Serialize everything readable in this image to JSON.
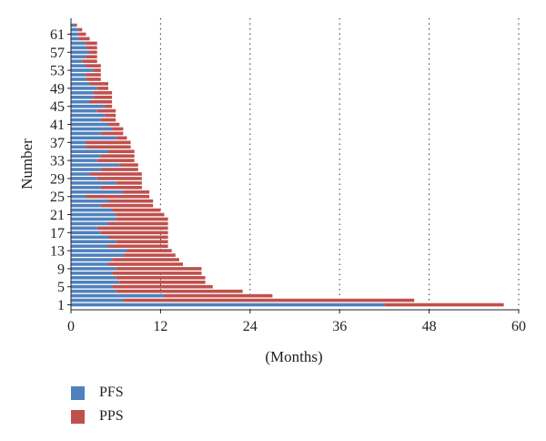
{
  "chart_data": {
    "type": "bar",
    "orientation": "horizontal",
    "stacked": true,
    "xlabel": "(Months)",
    "ylabel": "Number",
    "xlim": [
      0,
      60
    ],
    "xticks": [
      0,
      12,
      24,
      36,
      48,
      60
    ],
    "ylim": [
      0,
      64
    ],
    "yticks": [
      1,
      5,
      9,
      13,
      17,
      21,
      25,
      29,
      33,
      37,
      41,
      45,
      49,
      53,
      57,
      61
    ],
    "grid": "vertical-dotted",
    "legend_position": "bottom-left",
    "colors": {
      "PFS": "#4f81bd",
      "PPS": "#c0504d"
    },
    "series": [
      {
        "name": "PFS",
        "values": [
          42.0,
          7.0,
          12.5,
          6.0,
          5.5,
          6.5,
          6.0,
          5.5,
          6.0,
          5.0,
          5.5,
          7.0,
          7.5,
          5.0,
          6.0,
          5.0,
          4.0,
          3.5,
          5.0,
          6.0,
          6.0,
          5.5,
          4.0,
          5.0,
          2.0,
          7.0,
          4.0,
          6.0,
          3.5,
          2.5,
          4.0,
          6.5,
          3.5,
          4.0,
          5.0,
          2.0,
          2.0,
          6.0,
          4.0,
          5.5,
          5.0,
          4.0,
          4.5,
          3.5,
          4.5,
          2.5,
          3.0,
          3.0,
          3.5,
          2.5,
          2.0,
          2.0,
          3.0,
          2.0,
          1.5,
          2.0,
          2.5,
          2.0,
          2.0,
          1.0,
          1.0,
          1.0,
          0.5
        ],
        "values_note": ""
      },
      {
        "name": "PPS",
        "values": [
          16.0,
          39.0,
          14.5,
          17.0,
          13.5,
          11.5,
          12.0,
          12.0,
          11.5,
          10.0,
          9.0,
          7.0,
          6.0,
          8.0,
          7.0,
          8.0,
          9.0,
          9.5,
          8.0,
          7.0,
          6.5,
          6.5,
          7.0,
          6.0,
          8.5,
          3.5,
          5.5,
          3.5,
          6.0,
          7.0,
          5.0,
          2.5,
          5.0,
          4.5,
          3.5,
          6.0,
          6.0,
          1.5,
          3.0,
          1.5,
          1.5,
          2.0,
          1.5,
          2.5,
          1.0,
          3.0,
          2.5,
          2.5,
          1.5,
          2.5,
          2.0,
          2.0,
          1.0,
          2.0,
          2.0,
          1.5,
          1.0,
          1.5,
          1.5,
          1.5,
          1.0,
          0.5,
          0.3
        ]
      }
    ]
  }
}
